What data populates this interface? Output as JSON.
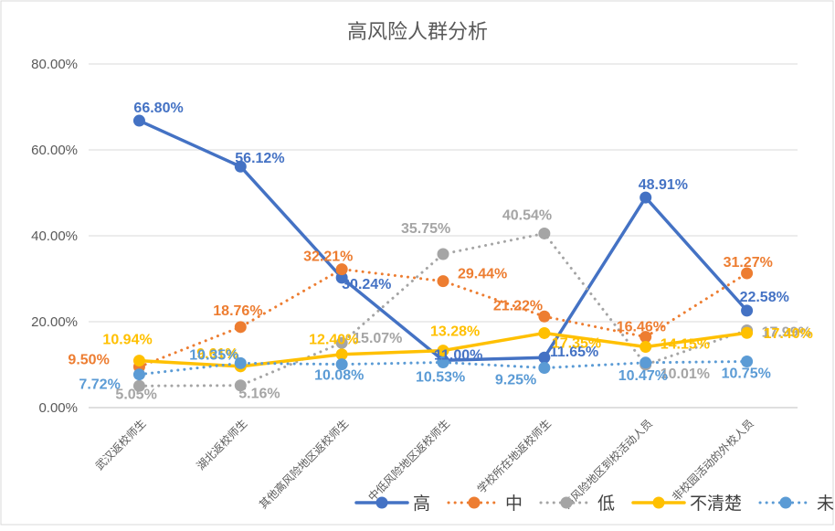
{
  "chart_data": {
    "type": "line",
    "title": "高风险人群分析",
    "xlabel": "",
    "ylabel": "",
    "ylim": [
      0,
      80
    ],
    "yticks": [
      "0.00%",
      "20.00%",
      "40.00%",
      "60.00%",
      "80.00%"
    ],
    "grid": true,
    "legend_position": "bottom-right",
    "categories": [
      "武汉返校师生",
      "湖北返校师生",
      "其他高风险地区返校师生",
      "中低风险地区返校师生",
      "学校所在地返校师生",
      "高风险地区到校活动人员",
      "非校园活动的外校人员"
    ],
    "series": [
      {
        "name": "高",
        "color": "#4472C4",
        "style": "solid",
        "values": [
          66.8,
          56.12,
          30.24,
          11.0,
          11.65,
          48.91,
          22.58
        ],
        "labels": [
          "66.80%",
          "56.12%",
          "30.24%",
          "11.00%",
          "11.65%",
          "48.91%",
          "22.58%"
        ]
      },
      {
        "name": "中",
        "color": "#ED7D31",
        "style": "dotted",
        "values": [
          9.5,
          18.76,
          32.21,
          29.44,
          21.22,
          16.46,
          31.27
        ],
        "labels": [
          "9.50%",
          "18.76%",
          "32.21%",
          "29.44%",
          "21.22%",
          "16.46%",
          "31.27%"
        ]
      },
      {
        "name": "低",
        "color": "#A5A5A5",
        "style": "dotted",
        "values": [
          5.05,
          5.16,
          15.07,
          35.75,
          40.54,
          10.01,
          17.99
        ],
        "labels": [
          "5.05%",
          "5.16%",
          "15.07%",
          "35.75%",
          "40.54%",
          "10.01%",
          "17.99%"
        ]
      },
      {
        "name": "不清楚",
        "color": "#FFC000",
        "style": "solid",
        "values": [
          10.94,
          9.61,
          12.4,
          13.28,
          17.35,
          14.15,
          17.4
        ],
        "labels": [
          "10.94%",
          "9.61%",
          "12.40%",
          "13.28%",
          "17.35%",
          "14.15%",
          "17.40%"
        ]
      },
      {
        "name": "未选择",
        "color": "#5B9BD5",
        "style": "dotted",
        "values": [
          7.72,
          10.35,
          10.08,
          10.53,
          9.25,
          10.47,
          10.75
        ],
        "labels": [
          "7.72%",
          "10.35%",
          "10.08%",
          "10.53%",
          "9.25%",
          "10.47%",
          "10.75%"
        ]
      }
    ]
  }
}
